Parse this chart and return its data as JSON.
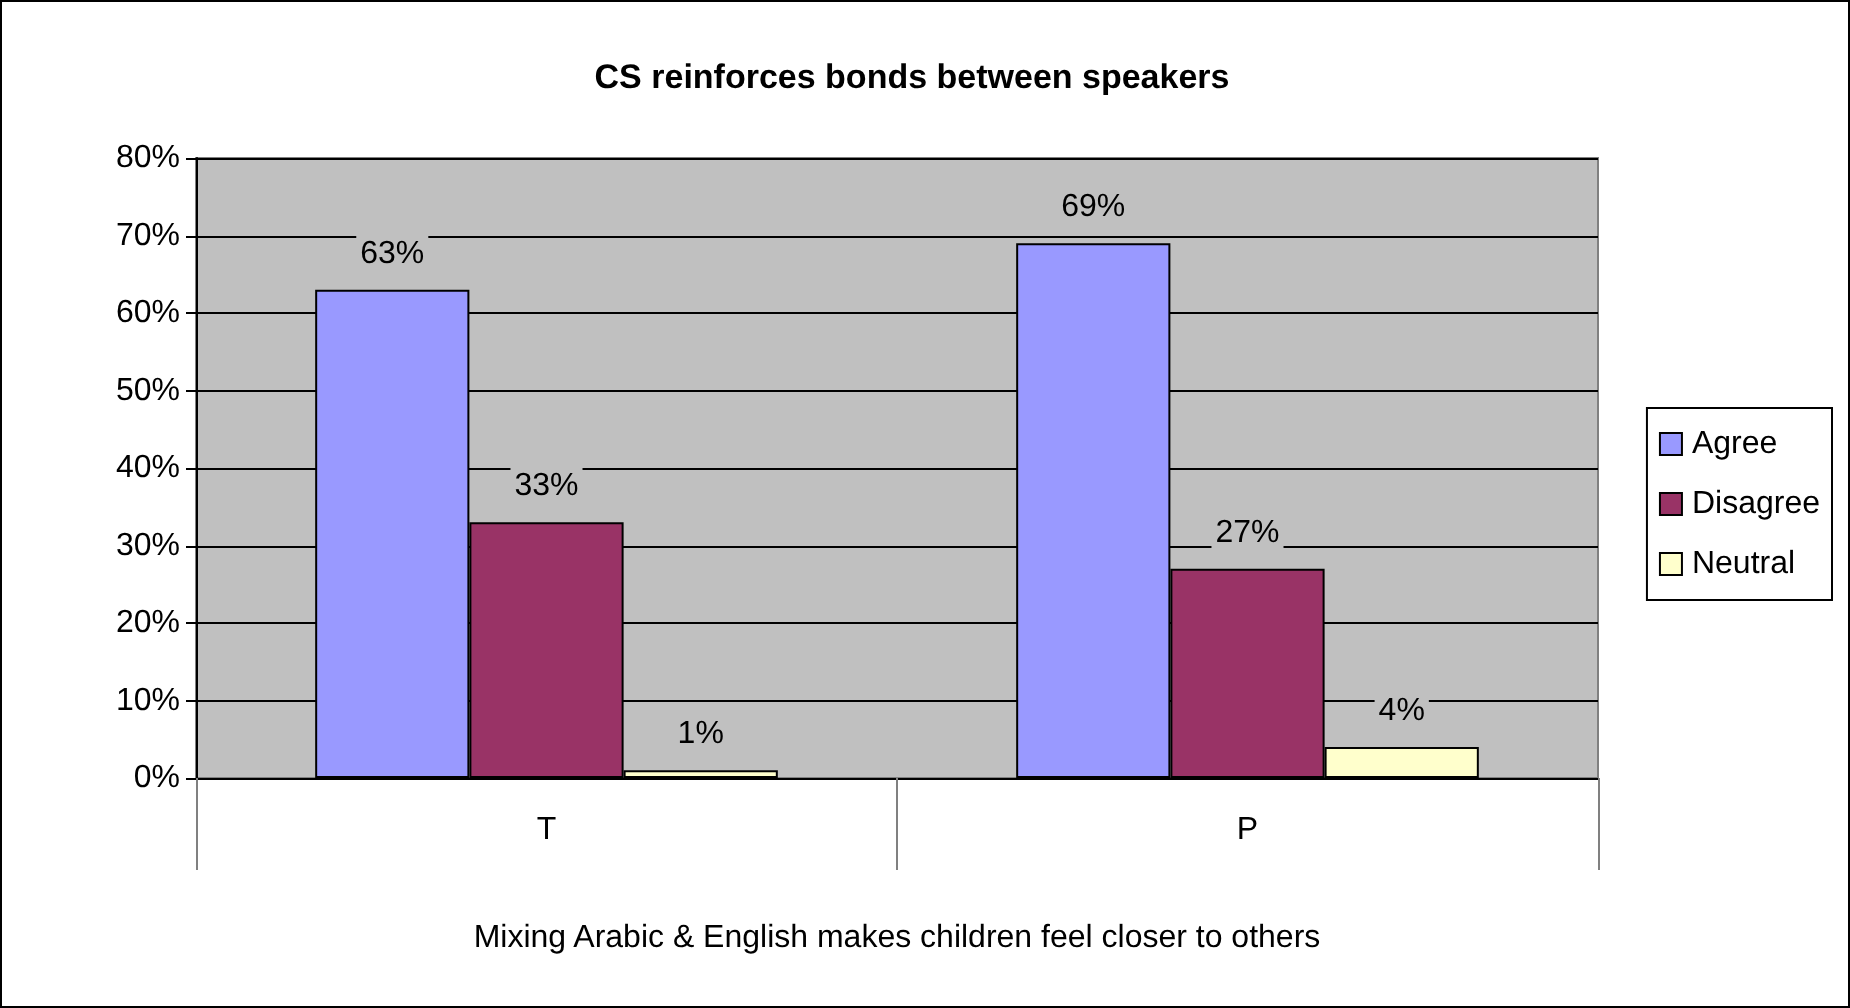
{
  "chart_data": {
    "type": "bar",
    "title": "CS reinforces bonds between speakers",
    "xlabel": "Mixing Arabic & English makes children feel closer to others",
    "categories": [
      "T",
      "P"
    ],
    "series": [
      {
        "name": "Agree",
        "color": "#9999ff",
        "values": [
          63,
          69
        ],
        "value_labels": [
          "63%",
          "69%"
        ]
      },
      {
        "name": "Disagree",
        "color": "#993366",
        "values": [
          33,
          27
        ],
        "value_labels": [
          "33%",
          "27%"
        ]
      },
      {
        "name": "Neutral",
        "color": "#ffffcc",
        "values": [
          1,
          4
        ],
        "value_labels": [
          "1%",
          "4%"
        ]
      }
    ],
    "ylim": [
      0,
      80
    ],
    "yticks": [
      {
        "value": 0,
        "label": "0%"
      },
      {
        "value": 10,
        "label": "10%"
      },
      {
        "value": 20,
        "label": "20%"
      },
      {
        "value": 30,
        "label": "30%"
      },
      {
        "value": 40,
        "label": "40%"
      },
      {
        "value": 50,
        "label": "50%"
      },
      {
        "value": 60,
        "label": "60%"
      },
      {
        "value": 70,
        "label": "70%"
      },
      {
        "value": 80,
        "label": "80%"
      }
    ],
    "grid": "y",
    "legend": "right"
  }
}
